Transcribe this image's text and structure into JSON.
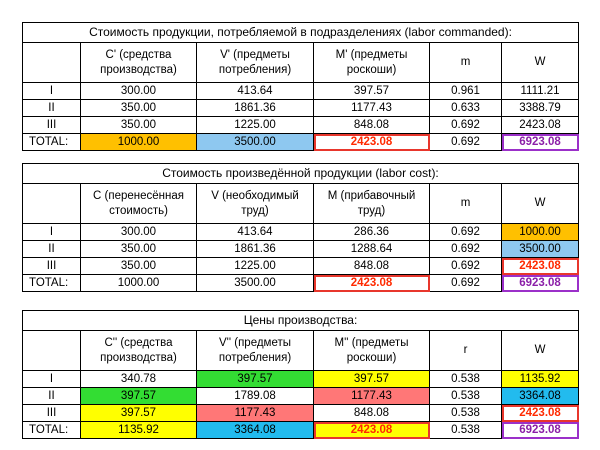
{
  "table1": {
    "title": "Стоимость продукции, потребляемой в подразделениях (labor commanded):",
    "headers": [
      "",
      "C' (средства производства)",
      "V' (предметы потребления)",
      "M' (предметы роскоши)",
      "m",
      "W"
    ],
    "rows": [
      [
        "I",
        "300.00",
        "413.64",
        "397.57",
        "0.961",
        "1111.21"
      ],
      [
        "II",
        "350.00",
        "1861.36",
        "1177.43",
        "0.633",
        "3388.79"
      ],
      [
        "III",
        "350.00",
        "1225.00",
        "848.08",
        "0.692",
        "2423.08"
      ],
      [
        "TOTAL:",
        "1000.00",
        "3500.00",
        "2423.08",
        "0.692",
        "6923.08"
      ]
    ]
  },
  "table2": {
    "title": "Стоимость произведённой продукции (labor cost):",
    "headers": [
      "",
      "С (перенесённая стоимость)",
      "V (необходимый труд)",
      "M (прибавочный труд)",
      "m",
      "W"
    ],
    "rows": [
      [
        "I",
        "300.00",
        "413.64",
        "286.36",
        "0.692",
        "1000.00"
      ],
      [
        "II",
        "350.00",
        "1861.36",
        "1288.64",
        "0.692",
        "3500.00"
      ],
      [
        "III",
        "350.00",
        "1225.00",
        "848.08",
        "0.692",
        "2423.08"
      ],
      [
        "TOTAL:",
        "1000.00",
        "3500.00",
        "2423.08",
        "0.692",
        "6923.08"
      ]
    ]
  },
  "table3": {
    "title": "Цены производства:",
    "headers": [
      "",
      "C'' (средства производства)",
      "V'' (предметы потребления)",
      "M'' (предметы роскоши)",
      "r",
      "W"
    ],
    "rows": [
      [
        "I",
        "340.78",
        "397.57",
        "397.57",
        "0.538",
        "1135.92"
      ],
      [
        "II",
        "397.57",
        "1789.08",
        "1177.43",
        "0.538",
        "3364.08"
      ],
      [
        "III",
        "397.57",
        "1177.43",
        "848.08",
        "0.538",
        "2423.08"
      ],
      [
        "TOTAL:",
        "1135.92",
        "3364.08",
        "2423.08",
        "0.538",
        "6923.08"
      ]
    ]
  },
  "colors": {
    "orange": "#ffc000",
    "light_blue": "#8ec8f0",
    "green": "#33dd33",
    "yellow": "#ffff00",
    "pink": "#ff7777",
    "teal": "#22bbee",
    "red_text": "#ff2a00",
    "purple_text": "#8b1fa8"
  }
}
